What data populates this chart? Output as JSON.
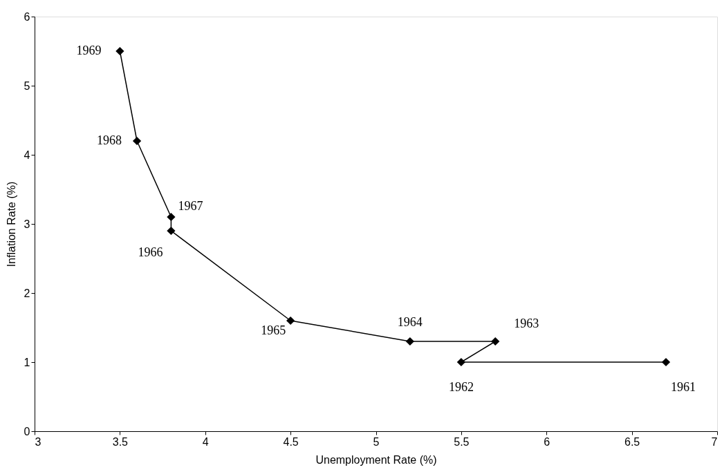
{
  "chart_data": {
    "type": "line",
    "xlabel": "Unemployment Rate (%)",
    "ylabel": "Inflation Rate (%)",
    "x": [
      6.7,
      5.5,
      5.7,
      5.2,
      4.5,
      3.8,
      3.8,
      3.6,
      3.5
    ],
    "series": [
      {
        "color": "#000000",
        "values": [
          1.0,
          1.0,
          1.3,
          1.3,
          1.6,
          2.9,
          3.1,
          4.2,
          5.5
        ]
      }
    ],
    "marker": "diamond",
    "line_style": "solid",
    "grid": false,
    "xlim": [
      3,
      7
    ],
    "xticks": [
      3,
      3.5,
      4,
      4.5,
      5,
      5.5,
      6,
      6.5,
      7
    ],
    "ylim": [
      0,
      6
    ],
    "yticks": [
      0,
      1,
      2,
      3,
      4,
      5,
      6
    ],
    "annotations": [
      {
        "text": "1961",
        "x": 6.7,
        "y": 1.0
      },
      {
        "text": "1962",
        "x": 5.5,
        "y": 1.0
      },
      {
        "text": "1963",
        "x": 5.7,
        "y": 1.3
      },
      {
        "text": "1964",
        "x": 5.2,
        "y": 1.3
      },
      {
        "text": "1965",
        "x": 4.5,
        "y": 1.6
      },
      {
        "text": "1966",
        "x": 3.8,
        "y": 2.9
      },
      {
        "text": "1967",
        "x": 3.8,
        "y": 3.1
      },
      {
        "text": "1968",
        "x": 3.6,
        "y": 4.2
      },
      {
        "text": "1969",
        "x": 3.5,
        "y": 5.5
      }
    ]
  }
}
